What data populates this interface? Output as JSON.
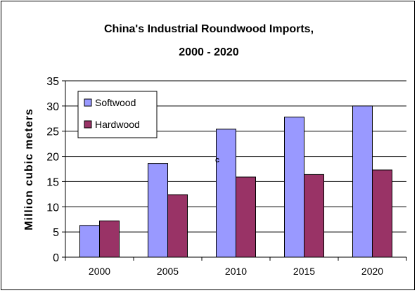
{
  "chart_data": {
    "type": "bar",
    "title_line1": "China's Industrial Roundwood Imports,",
    "title_line2": "2000 - 2020",
    "ylabel": "Million cubic meters",
    "xlabel": "",
    "categories": [
      "2000",
      "2005",
      "2010",
      "2015",
      "2020"
    ],
    "ylim": [
      0,
      35
    ],
    "yticks": [
      0,
      5,
      10,
      15,
      20,
      25,
      30,
      35
    ],
    "grid": true,
    "legend_position": "top-left",
    "series": [
      {
        "name": "Softwood",
        "values": [
          6.3,
          18.6,
          25.4,
          27.8,
          30.0
        ],
        "color": "#9999ff"
      },
      {
        "name": "Hardwood",
        "values": [
          7.2,
          12.4,
          15.9,
          16.4,
          17.3
        ],
        "color": "#993366"
      }
    ],
    "annotation": "c"
  }
}
